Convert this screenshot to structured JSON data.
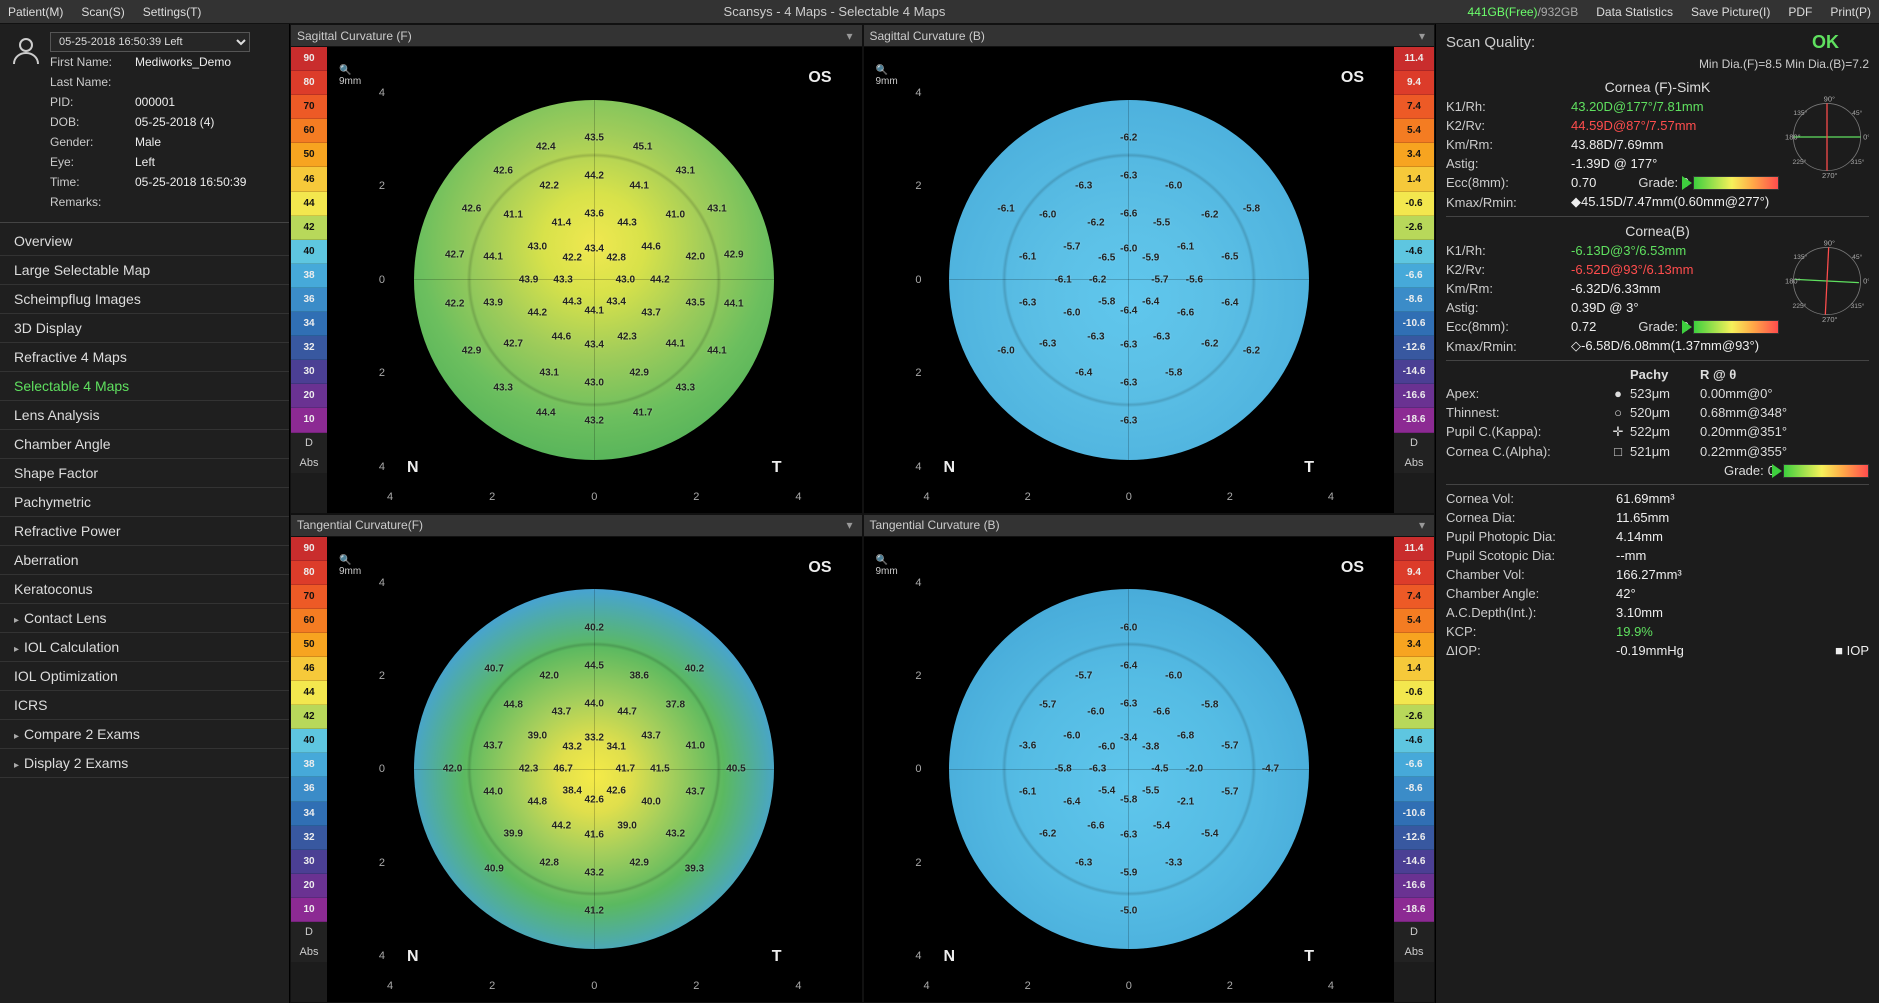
{
  "app_title": "Scansys  -  4 Maps - Selectable 4 Maps",
  "menubar": {
    "left": [
      "Patient(M)",
      "Scan(S)",
      "Settings(T)"
    ],
    "storage_free": "441GB(Free)",
    "storage_sep": "/",
    "storage_total": "932GB",
    "right": [
      "Data Statistics",
      "Save Picture(I)",
      "PDF",
      "Print(P)"
    ]
  },
  "patient": {
    "scan_select": "05-25-2018 16:50:39 Left",
    "first_name_lbl": "First Name:",
    "first_name": "Mediworks_Demo",
    "last_name_lbl": "Last Name:",
    "last_name": "",
    "pid_lbl": "PID:",
    "pid": "000001",
    "dob_lbl": "DOB:",
    "dob": "05-25-2018  (4)",
    "gender_lbl": "Gender:",
    "gender": "Male",
    "eye_lbl": "Eye:",
    "eye": "Left",
    "time_lbl": "Time:",
    "time": "05-25-2018 16:50:39",
    "remarks_lbl": "Remarks:",
    "remarks": ""
  },
  "nav_items": [
    {
      "label": "Overview",
      "indent": false,
      "active": false
    },
    {
      "label": "Large Selectable Map",
      "indent": false,
      "active": false
    },
    {
      "label": "Scheimpflug Images",
      "indent": false,
      "active": false
    },
    {
      "label": "3D Display",
      "indent": false,
      "active": false
    },
    {
      "label": "Refractive 4 Maps",
      "indent": false,
      "active": false
    },
    {
      "label": "Selectable 4 Maps",
      "indent": false,
      "active": true
    },
    {
      "label": "Lens Analysis",
      "indent": false,
      "active": false
    },
    {
      "label": "Chamber Angle",
      "indent": false,
      "active": false
    },
    {
      "label": "Shape Factor",
      "indent": false,
      "active": false
    },
    {
      "label": "Pachymetric",
      "indent": false,
      "active": false
    },
    {
      "label": "Refractive Power",
      "indent": false,
      "active": false
    },
    {
      "label": "Aberration",
      "indent": false,
      "active": false
    },
    {
      "label": "Keratoconus",
      "indent": false,
      "active": false
    },
    {
      "label": "Contact Lens",
      "indent": true,
      "active": false
    },
    {
      "label": "IOL Calculation",
      "indent": true,
      "active": false
    },
    {
      "label": "IOL Optimization",
      "indent": false,
      "active": false
    },
    {
      "label": "ICRS",
      "indent": false,
      "active": false
    },
    {
      "label": "Compare 2 Exams",
      "indent": true,
      "active": false
    },
    {
      "label": "Display 2 Exams",
      "indent": true,
      "active": false
    }
  ],
  "maps": [
    {
      "title": "Sagittal Curvature (F)",
      "bar": "diopter",
      "disc": "green",
      "eye": "OS",
      "cbRight": false
    },
    {
      "title": "Sagittal Curvature (B)",
      "bar": "back",
      "disc": "blue2",
      "eye": "OS",
      "cbRight": true
    },
    {
      "title": "Tangential Curvature(F)",
      "bar": "diopter",
      "disc": "tang",
      "eye": "OS",
      "cbRight": false
    },
    {
      "title": "Tangential Curvature (B)",
      "bar": "back",
      "disc": "tangb",
      "eye": "OS",
      "cbRight": true
    }
  ],
  "colorbar_diopter": [
    {
      "c": "#c92d2d",
      "t": "90",
      "dark": true
    },
    {
      "c": "#dc3c2a",
      "t": "80",
      "dark": true
    },
    {
      "c": "#ed5a26",
      "t": "70",
      "dark": false
    },
    {
      "c": "#f47c22",
      "t": "60",
      "dark": false
    },
    {
      "c": "#f7a420",
      "t": "50",
      "dark": false
    },
    {
      "c": "#f6c93a",
      "t": "46",
      "dark": false
    },
    {
      "c": "#f3e74e",
      "t": "44",
      "dark": false
    },
    {
      "c": "#b8d85a",
      "t": "42",
      "dark": false
    },
    {
      "c": "#5ec6e0",
      "t": "40",
      "dark": false
    },
    {
      "c": "#46a9d9",
      "t": "38",
      "dark": true
    },
    {
      "c": "#3b8cc8",
      "t": "36",
      "dark": true
    },
    {
      "c": "#306fb4",
      "t": "34",
      "dark": true
    },
    {
      "c": "#3858a0",
      "t": "32",
      "dark": true
    },
    {
      "c": "#4b3f94",
      "t": "30",
      "dark": true
    },
    {
      "c": "#6a3292",
      "t": "20",
      "dark": true
    },
    {
      "c": "#8c2a93",
      "t": "10",
      "dark": true
    }
  ],
  "colorbar_back": [
    {
      "c": "#c92d2d",
      "t": "11.4",
      "dark": true
    },
    {
      "c": "#dc3c2a",
      "t": "9.4",
      "dark": true
    },
    {
      "c": "#ed5a26",
      "t": "7.4",
      "dark": false
    },
    {
      "c": "#f47c22",
      "t": "5.4",
      "dark": false
    },
    {
      "c": "#f7a420",
      "t": "3.4",
      "dark": false
    },
    {
      "c": "#f6c93a",
      "t": "1.4",
      "dark": false
    },
    {
      "c": "#f3e74e",
      "t": "-0.6",
      "dark": false
    },
    {
      "c": "#b8d85a",
      "t": "-2.6",
      "dark": false
    },
    {
      "c": "#5ec6e0",
      "t": "-4.6",
      "dark": false
    },
    {
      "c": "#46a9d9",
      "t": "-6.6",
      "dark": true
    },
    {
      "c": "#3b8cc8",
      "t": "-8.6",
      "dark": true
    },
    {
      "c": "#306fb4",
      "t": "-10.6",
      "dark": true
    },
    {
      "c": "#3858a0",
      "t": "-12.6",
      "dark": true
    },
    {
      "c": "#4b3f94",
      "t": "-14.6",
      "dark": true
    },
    {
      "c": "#6a3292",
      "t": "-16.6",
      "dark": true
    },
    {
      "c": "#8c2a93",
      "t": "-18.6",
      "dark": true
    }
  ],
  "cb_foot": [
    "D",
    "Abs"
  ],
  "axis_bottom": [
    "4",
    "2",
    "0",
    "2",
    "4"
  ],
  "axis_left": [
    "4",
    "2",
    "0",
    "2",
    "4"
  ],
  "deg_labels": [
    "90°",
    "60°",
    "45°",
    "120°",
    "135°",
    "150°",
    "30°",
    "180°",
    "0°",
    "210°",
    "330°",
    "225°",
    "315°",
    "240°",
    "300°",
    "270°"
  ],
  "map_values": {
    "0": [
      "43.4",
      "42.8",
      "43.0",
      "43.4",
      "44.1",
      "44.3",
      "43.3",
      "42.2",
      "43.6",
      "44.3",
      "44.6",
      "44.2",
      "43.7",
      "42.3",
      "43.4",
      "44.6",
      "44.2",
      "43.9",
      "43.0",
      "41.4",
      "44.2",
      "44.1",
      "41.0",
      "42.0",
      "43.5",
      "44.1",
      "42.9",
      "43.0",
      "43.1",
      "42.7",
      "43.9",
      "44.1",
      "41.1",
      "42.2",
      "43.5",
      "45.1",
      "43.1",
      "43.1",
      "42.9",
      "44.1",
      "44.1",
      "43.3",
      "41.7",
      "43.2",
      "44.4",
      "43.3",
      "42.9",
      "42.2",
      "42.7",
      "42.6",
      "42.6",
      "42.4"
    ],
    "1": [
      "-6.0",
      "-5.9",
      "-5.7",
      "-6.4",
      "-6.4",
      "-5.8",
      "-6.2",
      "-6.5",
      "-6.6",
      "-5.5",
      "-6.1",
      "-5.6",
      "-6.6",
      "-6.3",
      "-6.3",
      "-6.3",
      "-6.0",
      "-6.1",
      "-5.7",
      "-6.2",
      "-6.3",
      "-6.0",
      "-6.2",
      "-6.5",
      "-6.4",
      "-6.2",
      "-5.8",
      "-6.3",
      "-6.4",
      "-6.3",
      "-6.3",
      "-6.1",
      "-6.0",
      "-6.3",
      "-6.2",
      "-5.8",
      "-6.2",
      "-6.3",
      "-6.0",
      "-6.1"
    ],
    "2": [
      "33.2",
      "34.1",
      "41.7",
      "42.6",
      "42.6",
      "38.4",
      "46.7",
      "43.2",
      "44.0",
      "44.7",
      "43.7",
      "41.5",
      "40.0",
      "39.0",
      "41.6",
      "44.2",
      "44.8",
      "42.3",
      "39.0",
      "43.7",
      "44.5",
      "38.6",
      "37.8",
      "41.0",
      "43.7",
      "43.2",
      "42.9",
      "43.2",
      "42.8",
      "39.9",
      "44.0",
      "43.7",
      "44.8",
      "42.0",
      "40.2",
      "40.2",
      "40.5",
      "39.3",
      "41.2",
      "40.9",
      "42.0",
      "40.7"
    ],
    "3": [
      "-3.4",
      "-3.8",
      "-4.5",
      "-5.5",
      "-5.8",
      "-5.4",
      "-6.3",
      "-6.0",
      "-6.3",
      "-6.6",
      "-6.8",
      "-2.0",
      "-2.1",
      "-5.4",
      "-6.3",
      "-6.6",
      "-6.4",
      "-5.8",
      "-6.0",
      "-6.0",
      "-6.4",
      "-6.0",
      "-5.8",
      "-5.7",
      "-5.7",
      "-5.4",
      "-3.3",
      "-5.9",
      "-6.3",
      "-6.2",
      "-6.1",
      "-3.6",
      "-5.7",
      "-5.7",
      "-6.0",
      "-4.7",
      "-5.0"
    ]
  },
  "rpanel": {
    "scan_quality_lbl": "Scan Quality:",
    "scan_quality": "OK",
    "min_dia": "Min Dia.(F)=8.5  Min Dia.(B)=7.2",
    "f_title": "Cornea (F)-SimK",
    "f_rows": [
      {
        "k": "K1/Rh:",
        "v": "43.20D@177°/7.81mm",
        "cls": "green"
      },
      {
        "k": "K2/Rv:",
        "v": "44.59D@87°/7.57mm",
        "cls": "red"
      },
      {
        "k": "Km/Rm:",
        "v": "43.88D/7.69mm",
        "cls": ""
      },
      {
        "k": "Astig:",
        "v": "-1.39D @ 177°",
        "cls": ""
      },
      {
        "k": "Ecc(8mm):",
        "v": "0.70",
        "cls": "",
        "grade": "0"
      }
    ],
    "kmax_lbl": "Kmax/Rmin:",
    "kmax": "◆45.15D/7.47mm(0.60mm@277°)",
    "b_title": "Cornea(B)",
    "b_rows": [
      {
        "k": "K1/Rh:",
        "v": "-6.13D@3°/6.53mm",
        "cls": "green"
      },
      {
        "k": "K2/Rv:",
        "v": "-6.52D@93°/6.13mm",
        "cls": "red"
      },
      {
        "k": "Km/Rm:",
        "v": "-6.32D/6.33mm",
        "cls": ""
      },
      {
        "k": "Astig:",
        "v": "0.39D @ 3°",
        "cls": ""
      },
      {
        "k": "Ecc(8mm):",
        "v": "0.72",
        "cls": "",
        "grade": "0"
      }
    ],
    "kmaxb_lbl": "Kmax/Rmin:",
    "kmaxb": "◇-6.58D/6.08mm(1.37mm@93°)",
    "pachy_head": [
      "",
      "Pachy",
      "R @ θ"
    ],
    "pachy_rows": [
      {
        "k": "Apex:",
        "sym": "●",
        "v1": "523μm",
        "v2": "0.00mm@0°"
      },
      {
        "k": "Thinnest:",
        "sym": "○",
        "v1": "520μm",
        "v2": "0.68mm@348°"
      },
      {
        "k": "Pupil C.(Kappa):",
        "sym": "✛",
        "v1": "522μm",
        "v2": "0.20mm@351°"
      },
      {
        "k": "Cornea C.(Alpha):",
        "sym": "□",
        "v1": "521μm",
        "v2": "0.22mm@355°"
      }
    ],
    "pachy_grade_lbl": "Grade:",
    "pachy_grade": "0",
    "metrics": [
      {
        "k": "Cornea Vol:",
        "v": "61.69mm³",
        "cls": ""
      },
      {
        "k": "Cornea Dia:",
        "v": "11.65mm",
        "cls": ""
      },
      {
        "k": "Pupil Photopic Dia:",
        "v": "4.14mm",
        "cls": ""
      },
      {
        "k": "Pupil Scotopic Dia:",
        "v": "--mm",
        "cls": ""
      },
      {
        "k": "Chamber Vol:",
        "v": "166.27mm³",
        "cls": ""
      },
      {
        "k": "Chamber Angle:",
        "v": "42°",
        "cls": ""
      },
      {
        "k": "A.C.Depth(Int.):",
        "v": "3.10mm",
        "cls": ""
      },
      {
        "k": "KCP:",
        "v": "19.9%",
        "cls": "green"
      }
    ],
    "iop_lbl": "ΔIOP:",
    "iop_val": "-0.19mmHg",
    "iop_btn": "IOP"
  }
}
